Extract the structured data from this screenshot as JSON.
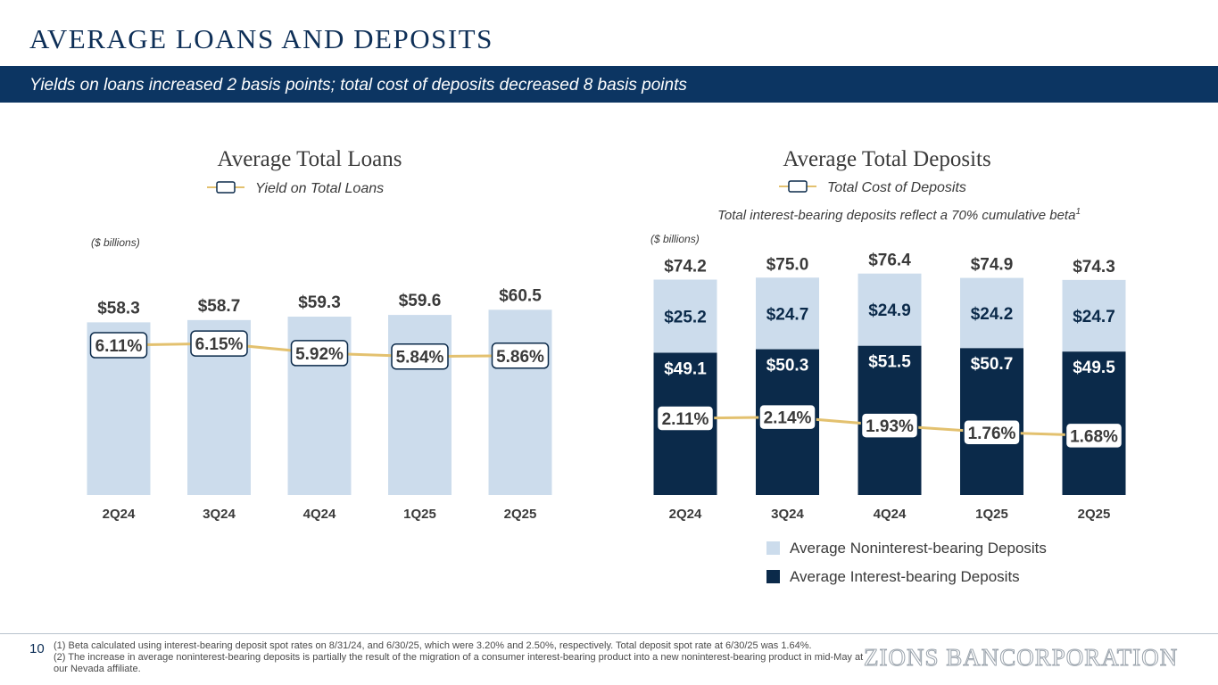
{
  "title": "AVERAGE LOANS AND DEPOSITS",
  "subtitle": "Yields on loans increased 2 basis points; total cost of deposits decreased 8 basis points",
  "colors": {
    "navy": "#0c3562",
    "dark_bar": "#0b2a4a",
    "light_bar": "#ccdcec",
    "line": "#e3c16f"
  },
  "chart_data": [
    {
      "type": "bar",
      "title": "Average Total Loans",
      "units": "($ billions)",
      "categories": [
        "2Q24",
        "3Q24",
        "4Q24",
        "1Q25",
        "2Q25"
      ],
      "values": [
        58.3,
        58.7,
        59.3,
        59.6,
        60.5
      ],
      "value_labels": [
        "$58.3",
        "$58.7",
        "$59.3",
        "$59.6",
        "$60.5"
      ],
      "line_series": {
        "name": "Yield on Total Loans",
        "values": [
          6.11,
          6.15,
          5.92,
          5.84,
          5.86
        ],
        "labels": [
          "6.11%",
          "6.15%",
          "5.92%",
          "5.84%",
          "5.86%"
        ]
      }
    },
    {
      "type": "bar",
      "stacked": true,
      "title": "Average Total Deposits",
      "note": "Total interest-bearing deposits reflect a 70% cumulative beta",
      "note_sup": "1",
      "units": "($ billions)",
      "categories": [
        "2Q24",
        "3Q24",
        "4Q24",
        "1Q25",
        "2Q25"
      ],
      "totals": [
        74.2,
        75.0,
        76.4,
        74.9,
        74.3
      ],
      "total_labels": [
        "$74.2",
        "$75.0",
        "$76.4",
        "$74.9",
        "$74.3"
      ],
      "series": [
        {
          "name": "Average Interest-bearing Deposits",
          "values": [
            49.1,
            50.3,
            51.5,
            50.7,
            49.5
          ],
          "labels": [
            "$49.1",
            "$50.3",
            "$51.5",
            "$50.7",
            "$49.5"
          ]
        },
        {
          "name": "Average Noninterest-bearing Deposits",
          "values": [
            25.2,
            24.7,
            24.9,
            24.2,
            24.7
          ],
          "labels": [
            "$25.2",
            "$24.7",
            "$24.9",
            "$24.2",
            "$24.7"
          ]
        }
      ],
      "line_series": {
        "name": "Total Cost of Deposits",
        "values": [
          2.11,
          2.14,
          1.93,
          1.76,
          1.68
        ],
        "labels": [
          "2.11%",
          "2.14%",
          "1.93%",
          "1.76%",
          "1.68%"
        ]
      }
    }
  ],
  "footer": {
    "page_number": "10",
    "footnote_1": "(1) Beta calculated using interest-bearing deposit spot rates on 8/31/24, and 6/30/25, which were 3.20% and 2.50%, respectively. Total deposit spot rate at 6/30/25 was 1.64%.",
    "footnote_2": "(2) The increase in average noninterest-bearing deposits is partially the result of the migration of a consumer interest-bearing product into a new noninterest-bearing product in mid-May at our Nevada affiliate.",
    "brand": "ZIONS BANCORPORATION"
  }
}
